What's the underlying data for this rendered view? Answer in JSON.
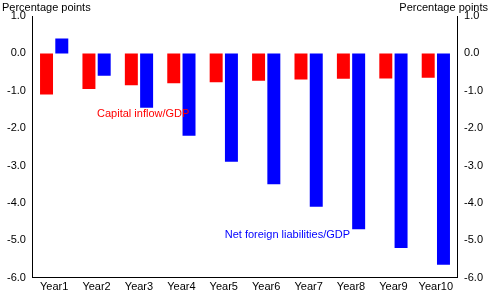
{
  "chart_data": {
    "type": "bar",
    "y_label": "Percentage points",
    "y2_label": "Percentage points",
    "categories": [
      "Year1",
      "Year2",
      "Year3",
      "Year4",
      "Year5",
      "Year6",
      "Year7",
      "Year8",
      "Year9",
      "Year10"
    ],
    "series": [
      {
        "name": "Capital inflow/GDP",
        "color": "#ff0000",
        "values": [
          -1.1,
          -0.95,
          -0.85,
          -0.8,
          -0.77,
          -0.73,
          -0.7,
          -0.68,
          -0.67,
          -0.65
        ]
      },
      {
        "name": "Net foreign liabilities/GDP",
        "color": "#0000ff",
        "values": [
          0.4,
          -0.6,
          -1.45,
          -2.2,
          -2.9,
          -3.5,
          -4.1,
          -4.7,
          -5.2,
          -5.65
        ]
      }
    ],
    "ylim": [
      -6,
      1
    ],
    "yticks": [
      {
        "value": -6,
        "label": "-6.0"
      },
      {
        "value": -5,
        "label": "-5.0"
      },
      {
        "value": -4,
        "label": "-4.0"
      },
      {
        "value": -3,
        "label": "-3.0"
      },
      {
        "value": -2,
        "label": "-2.0"
      },
      {
        "value": -1,
        "label": "-1.0"
      },
      {
        "value": 0,
        "label": "0.0"
      },
      {
        "value": 1,
        "label": "1.0"
      }
    ],
    "y2lim": [
      -6,
      1
    ],
    "y2ticks": [
      {
        "value": -6,
        "label": "-6.0"
      },
      {
        "value": -5,
        "label": "-5.0"
      },
      {
        "value": -4,
        "label": "-4.0"
      },
      {
        "value": -3,
        "label": "-3.0"
      },
      {
        "value": -2,
        "label": "-2.0"
      },
      {
        "value": -1,
        "label": "-1.0"
      },
      {
        "value": 0,
        "label": "0.0"
      },
      {
        "value": 1,
        "label": "1.0"
      }
    ],
    "grid": false
  }
}
